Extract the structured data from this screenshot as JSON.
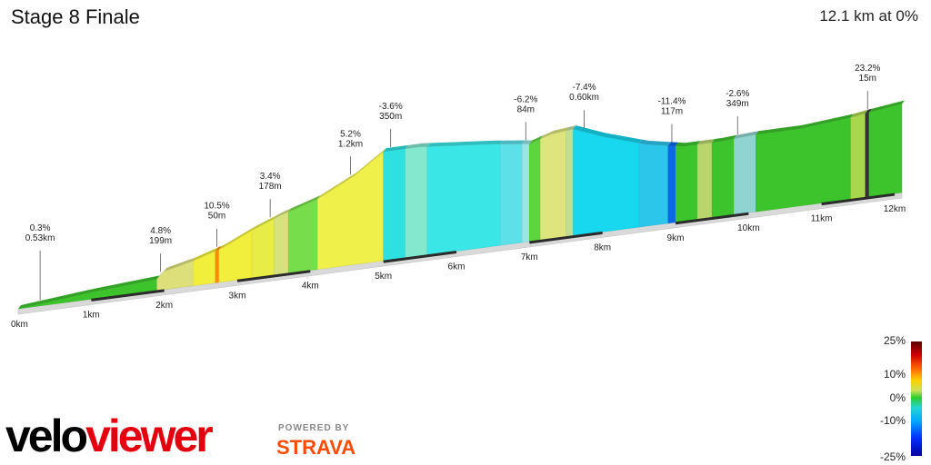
{
  "header": {
    "title": "Stage 8 Finale",
    "summary": "12.1 km at 0%"
  },
  "chart_data": {
    "type": "area",
    "xlabel": "",
    "ylabel": "",
    "x_ticks": [
      "0km",
      "1km",
      "2km",
      "3km",
      "4km",
      "5km",
      "6km",
      "7km",
      "8km",
      "9km",
      "10km",
      "11km",
      "12km"
    ],
    "xlim": [
      0,
      12.1
    ],
    "profile": [
      {
        "x": 0.0,
        "y": 0
      },
      {
        "x": 1.0,
        "y": 6
      },
      {
        "x": 1.9,
        "y": 10
      },
      {
        "x": 2.0,
        "y": 16
      },
      {
        "x": 2.4,
        "y": 22
      },
      {
        "x": 2.8,
        "y": 30
      },
      {
        "x": 3.2,
        "y": 42
      },
      {
        "x": 3.6,
        "y": 52
      },
      {
        "x": 4.1,
        "y": 62
      },
      {
        "x": 4.6,
        "y": 78
      },
      {
        "x": 5.0,
        "y": 96
      },
      {
        "x": 5.5,
        "y": 96
      },
      {
        "x": 6.5,
        "y": 90
      },
      {
        "x": 7.0,
        "y": 86
      },
      {
        "x": 7.3,
        "y": 92
      },
      {
        "x": 7.6,
        "y": 94
      },
      {
        "x": 8.0,
        "y": 84
      },
      {
        "x": 8.6,
        "y": 72
      },
      {
        "x": 9.1,
        "y": 66
      },
      {
        "x": 9.6,
        "y": 66
      },
      {
        "x": 10.1,
        "y": 68
      },
      {
        "x": 10.7,
        "y": 68
      },
      {
        "x": 11.4,
        "y": 72
      },
      {
        "x": 11.6,
        "y": 74
      },
      {
        "x": 12.1,
        "y": 78
      }
    ],
    "segments": [
      {
        "from": 0.0,
        "to": 1.9,
        "color": "#3dc42d"
      },
      {
        "from": 1.9,
        "to": 2.4,
        "color": "#dde07a"
      },
      {
        "from": 2.4,
        "to": 2.7,
        "color": "#f2ee3c"
      },
      {
        "from": 2.7,
        "to": 2.75,
        "color": "#ff8c00"
      },
      {
        "from": 2.75,
        "to": 3.2,
        "color": "#f2ee3c"
      },
      {
        "from": 3.2,
        "to": 3.5,
        "color": "#e8ec46"
      },
      {
        "from": 3.5,
        "to": 3.7,
        "color": "#d6e27e"
      },
      {
        "from": 3.7,
        "to": 4.1,
        "color": "#77dd4a"
      },
      {
        "from": 4.1,
        "to": 5.0,
        "color": "#f0f04a"
      },
      {
        "from": 5.0,
        "to": 5.3,
        "color": "#2ee0e0"
      },
      {
        "from": 5.3,
        "to": 5.6,
        "color": "#84e8cf"
      },
      {
        "from": 5.6,
        "to": 6.6,
        "color": "#3ae6e6"
      },
      {
        "from": 6.6,
        "to": 6.9,
        "color": "#5ee0e8"
      },
      {
        "from": 6.9,
        "to": 7.0,
        "color": "#9ae6e6"
      },
      {
        "from": 7.0,
        "to": 7.15,
        "color": "#5dd63d"
      },
      {
        "from": 7.15,
        "to": 7.5,
        "color": "#dde57c"
      },
      {
        "from": 7.5,
        "to": 7.6,
        "color": "#c2dc9a"
      },
      {
        "from": 7.6,
        "to": 8.5,
        "color": "#18d8ef"
      },
      {
        "from": 8.5,
        "to": 8.9,
        "color": "#2cc6ea"
      },
      {
        "from": 8.9,
        "to": 9.0,
        "color": "#0b66ee"
      },
      {
        "from": 9.0,
        "to": 9.3,
        "color": "#3dc42d"
      },
      {
        "from": 9.3,
        "to": 9.5,
        "color": "#b8d66b"
      },
      {
        "from": 9.5,
        "to": 9.8,
        "color": "#3dc42d"
      },
      {
        "from": 9.8,
        "to": 10.1,
        "color": "#8fd4d0"
      },
      {
        "from": 10.1,
        "to": 11.4,
        "color": "#3dc42d"
      },
      {
        "from": 11.4,
        "to": 11.6,
        "color": "#a8d64c"
      },
      {
        "from": 11.6,
        "to": 11.65,
        "color": "#333333"
      },
      {
        "from": 11.65,
        "to": 12.1,
        "color": "#3dc42d"
      }
    ],
    "annotations": [
      {
        "x": 0.3,
        "grade": "0.3%",
        "length": "0.53km"
      },
      {
        "x": 1.95,
        "grade": "4.8%",
        "length": "199m"
      },
      {
        "x": 2.72,
        "grade": "10.5%",
        "length": "50m"
      },
      {
        "x": 3.45,
        "grade": "3.4%",
        "length": "178m"
      },
      {
        "x": 4.55,
        "grade": "5.2%",
        "length": "1.2km"
      },
      {
        "x": 5.1,
        "grade": "-3.6%",
        "length": "350m"
      },
      {
        "x": 6.95,
        "grade": "-6.2%",
        "length": "84m"
      },
      {
        "x": 7.75,
        "grade": "-7.4%",
        "length": "0.60km"
      },
      {
        "x": 8.95,
        "grade": "-11.4%",
        "length": "117m"
      },
      {
        "x": 9.85,
        "grade": "-2.6%",
        "length": "349m"
      },
      {
        "x": 11.63,
        "grade": "23.2%",
        "length": "15m"
      }
    ],
    "legend": {
      "labels": [
        "25%",
        "10%",
        "0%",
        "-10%",
        "-25%"
      ],
      "position": "bottom-right"
    }
  },
  "branding": {
    "velo": "velo",
    "viewer": "viewer",
    "powered": "POWERED BY",
    "strava": "STRAVA"
  }
}
